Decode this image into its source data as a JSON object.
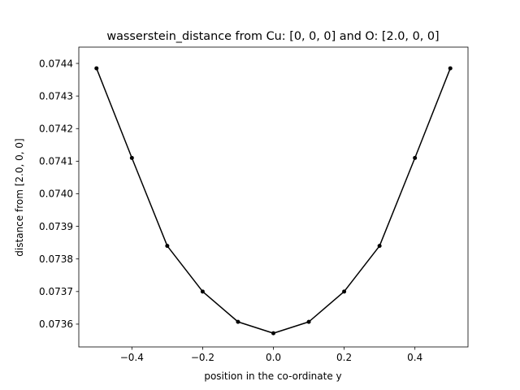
{
  "chart_data": {
    "type": "line",
    "title": "wasserstein_distance from Cu: [0, 0, 0] and O: [2.0, 0, 0]",
    "xlabel": "position in the co-ordinate y",
    "ylabel": "distance from [2.0, 0, 0]",
    "xlim": [
      -0.55,
      0.55
    ],
    "ylim": [
      0.07353,
      0.07445
    ],
    "xticks": [
      -0.4,
      -0.2,
      0.0,
      0.2,
      0.4
    ],
    "xtick_labels": [
      "−0.4",
      "−0.2",
      "0.0",
      "0.2",
      "0.4"
    ],
    "yticks": [
      0.0736,
      0.0737,
      0.0738,
      0.0739,
      0.074,
      0.0741,
      0.0742,
      0.0743,
      0.0744
    ],
    "ytick_labels": [
      "0.0736",
      "0.0737",
      "0.0738",
      "0.0739",
      "0.0740",
      "0.0741",
      "0.0742",
      "0.0743",
      "0.0744"
    ],
    "grid": false,
    "series": [
      {
        "color": "#000000",
        "marker": "circle",
        "x": [
          -0.5,
          -0.4,
          -0.3,
          -0.2,
          -0.1,
          0.0,
          0.1,
          0.2,
          0.3,
          0.4,
          0.5
        ],
        "y": [
          0.074385,
          0.07411,
          0.07384,
          0.0737,
          0.073607,
          0.073572,
          0.073607,
          0.0737,
          0.07384,
          0.07411,
          0.074385
        ]
      }
    ]
  }
}
